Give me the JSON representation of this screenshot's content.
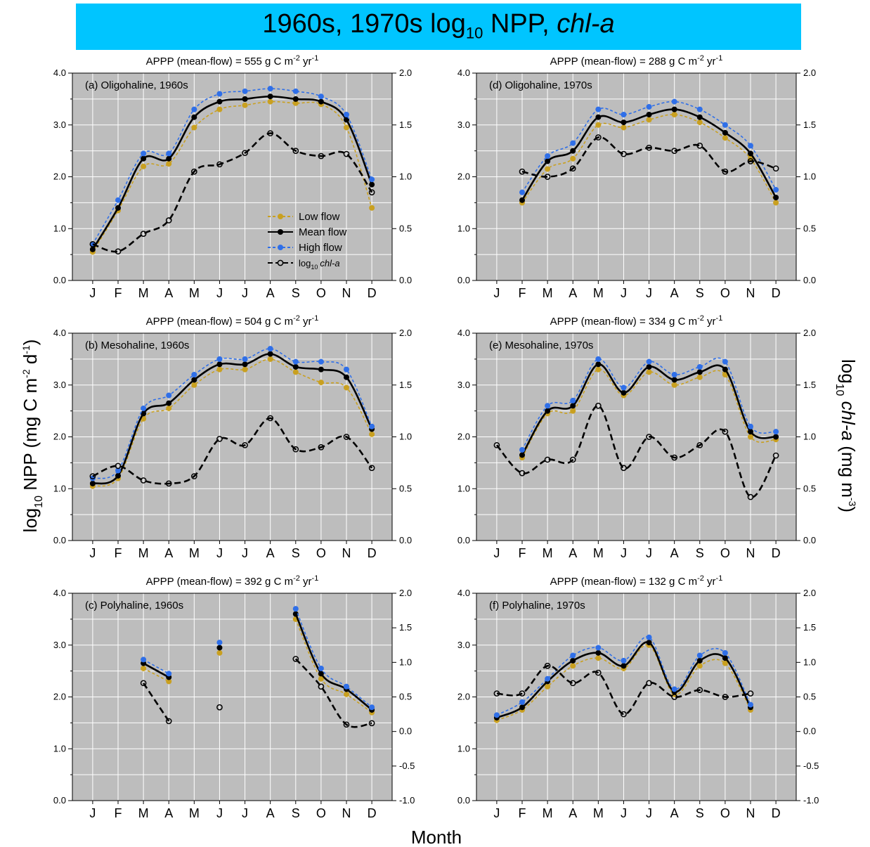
{
  "title": {
    "pre": "1960s, 1970s log",
    "sub": "10",
    "post": " NPP, ",
    "em": "chl-a"
  },
  "colors": {
    "banner": "#00c5ff",
    "panel_bg": "#bdbdbd",
    "grid": "#ffffff",
    "low": "#c9a020",
    "mean": "#000000",
    "high": "#2f6fe8",
    "chl": "#000000"
  },
  "axes": {
    "ylabel_left": {
      "pre": "log",
      "sub": "10",
      "mid": " NPP (mg C m",
      "sup1": "-2",
      "mid2": " d",
      "sup2": "-1",
      "end": ")"
    },
    "ylabel_right": {
      "pre": "log",
      "sub": "10",
      "mid": " chl-a",
      "mid2": " (mg m",
      "sup": "-3",
      "end": ")"
    },
    "xlabel": "Month"
  },
  "legend": {
    "low": "Low flow",
    "mean": "Mean flow",
    "high": "High flow",
    "chl_pre": "log",
    "chl_sub": "10",
    "chl_post": "chl-a"
  },
  "chart_data": [
    {
      "type": "line",
      "panel": "(a) Oligohaline, 1960s",
      "appp": {
        "pre": "APPP (mean-flow)  = 555 g C m",
        "sup1": "-2",
        "mid": " yr",
        "sup2": "-1"
      },
      "categories": [
        "J",
        "F",
        "M",
        "A",
        "M",
        "J",
        "J",
        "A",
        "S",
        "O",
        "N",
        "D"
      ],
      "y_left": {
        "range": [
          0,
          4
        ],
        "ticks": [
          "0.0",
          "1.0",
          "2.0",
          "3.0",
          "4.0"
        ]
      },
      "y_right": {
        "range": [
          0,
          2
        ],
        "ticks": [
          "0.0",
          "0.5",
          "1.0",
          "1.5",
          "2.0"
        ]
      },
      "series": [
        {
          "name": "Low flow",
          "values": [
            0.55,
            1.35,
            2.2,
            2.25,
            2.95,
            3.3,
            3.38,
            3.45,
            3.42,
            3.4,
            2.95,
            1.4
          ]
        },
        {
          "name": "Mean flow",
          "values": [
            0.6,
            1.4,
            2.35,
            2.35,
            3.15,
            3.45,
            3.5,
            3.55,
            3.5,
            3.45,
            3.1,
            1.85
          ]
        },
        {
          "name": "High flow",
          "values": [
            0.7,
            1.55,
            2.45,
            2.45,
            3.3,
            3.6,
            3.65,
            3.7,
            3.65,
            3.55,
            3.2,
            1.95
          ]
        },
        {
          "name": "log10 chl-a",
          "values": [
            0.35,
            0.28,
            0.45,
            0.58,
            1.05,
            1.12,
            1.23,
            1.42,
            1.25,
            1.2,
            1.22,
            0.85
          ]
        }
      ]
    },
    {
      "type": "line",
      "panel": "(d) Oligohaline, 1970s",
      "appp": {
        "pre": "APPP (mean-flow)  = 288 g C m",
        "sup1": "-2",
        "mid": " yr",
        "sup2": "-1"
      },
      "categories": [
        "J",
        "F",
        "M",
        "A",
        "M",
        "J",
        "J",
        "A",
        "S",
        "O",
        "N",
        "D"
      ],
      "y_left": {
        "range": [
          0,
          4
        ],
        "ticks": [
          "0.0",
          "1.0",
          "2.0",
          "3.0",
          "4.0"
        ]
      },
      "y_right": {
        "range": [
          0,
          2
        ],
        "ticks": [
          "0.0",
          "0.5",
          "1.0",
          "1.5",
          "2.0"
        ]
      },
      "series": [
        {
          "name": "Low flow",
          "values": [
            null,
            1.5,
            2.15,
            2.35,
            3.0,
            2.95,
            3.1,
            3.2,
            3.05,
            2.75,
            2.35,
            1.5
          ]
        },
        {
          "name": "Mean flow",
          "values": [
            null,
            1.55,
            2.3,
            2.5,
            3.15,
            3.05,
            3.2,
            3.3,
            3.15,
            2.85,
            2.45,
            1.6
          ]
        },
        {
          "name": "High flow",
          "values": [
            null,
            1.7,
            2.4,
            2.65,
            3.3,
            3.2,
            3.35,
            3.45,
            3.3,
            3.0,
            2.6,
            1.75
          ]
        },
        {
          "name": "log10 chl-a",
          "values": [
            null,
            1.05,
            1.0,
            1.08,
            1.38,
            1.22,
            1.28,
            1.25,
            1.3,
            1.05,
            1.15,
            1.08
          ]
        }
      ]
    },
    {
      "type": "line",
      "panel": "(b) Mesohaline, 1960s",
      "appp": {
        "pre": "APPP (mean-flow)  = 504 g C m",
        "sup1": "-2",
        "mid": " yr",
        "sup2": "-1"
      },
      "categories": [
        "J",
        "F",
        "M",
        "A",
        "M",
        "J",
        "J",
        "A",
        "S",
        "O",
        "N",
        "D"
      ],
      "y_left": {
        "range": [
          0,
          4
        ],
        "ticks": [
          "0.0",
          "1.0",
          "2.0",
          "3.0",
          "4.0"
        ]
      },
      "y_right": {
        "range": [
          0,
          2
        ],
        "ticks": [
          "0.0",
          "0.5",
          "1.0",
          "1.5",
          "2.0"
        ]
      },
      "series": [
        {
          "name": "Low flow",
          "values": [
            1.05,
            1.2,
            2.35,
            2.55,
            3.0,
            3.3,
            3.3,
            3.5,
            3.25,
            3.05,
            2.95,
            2.05
          ]
        },
        {
          "name": "Mean flow",
          "values": [
            1.1,
            1.25,
            2.45,
            2.65,
            3.1,
            3.4,
            3.4,
            3.6,
            3.35,
            3.3,
            3.15,
            2.15
          ]
        },
        {
          "name": "High flow",
          "values": [
            1.2,
            1.35,
            2.55,
            2.8,
            3.2,
            3.5,
            3.5,
            3.7,
            3.45,
            3.45,
            3.3,
            2.2
          ]
        },
        {
          "name": "log10 chl-a",
          "values": [
            0.62,
            0.72,
            0.58,
            0.55,
            0.62,
            0.98,
            0.92,
            1.18,
            0.88,
            0.9,
            1.0,
            0.7
          ]
        }
      ]
    },
    {
      "type": "line",
      "panel": "(e) Mesohaline, 1970s",
      "appp": {
        "pre": "APPP (mean-flow)  = 334 g C m",
        "sup1": "-2",
        "mid": " yr",
        "sup2": "-1"
      },
      "categories": [
        "J",
        "F",
        "M",
        "A",
        "M",
        "J",
        "J",
        "A",
        "S",
        "O",
        "N",
        "D"
      ],
      "y_left": {
        "range": [
          0,
          4
        ],
        "ticks": [
          "0.0",
          "1.0",
          "2.0",
          "3.0",
          "4.0"
        ]
      },
      "y_right": {
        "range": [
          0,
          2
        ],
        "ticks": [
          "0.0",
          "0.5",
          "1.0",
          "1.5",
          "2.0"
        ]
      },
      "series": [
        {
          "name": "Low flow",
          "values": [
            null,
            1.6,
            2.45,
            2.5,
            3.3,
            2.8,
            3.25,
            3.0,
            3.15,
            3.2,
            2.0,
            1.95
          ]
        },
        {
          "name": "Mean flow",
          "values": [
            null,
            1.65,
            2.5,
            2.6,
            3.4,
            2.85,
            3.35,
            3.1,
            3.25,
            3.3,
            2.1,
            2.0
          ]
        },
        {
          "name": "High flow",
          "values": [
            null,
            1.75,
            2.6,
            2.7,
            3.5,
            2.95,
            3.45,
            3.2,
            3.35,
            3.45,
            2.2,
            2.1
          ]
        },
        {
          "name": "log10 chl-a",
          "values": [
            0.92,
            0.65,
            0.78,
            0.78,
            1.3,
            0.7,
            1.0,
            0.8,
            0.92,
            1.05,
            0.42,
            0.82
          ]
        }
      ]
    },
    {
      "type": "line",
      "panel": "(c) Polyhaline, 1960s",
      "appp": {
        "pre": "APPP (mean-flow)  = 392 g C m",
        "sup1": "-2",
        "mid": " yr",
        "sup2": "-1"
      },
      "categories": [
        "J",
        "F",
        "M",
        "A",
        "M",
        "J",
        "J",
        "A",
        "S",
        "O",
        "N",
        "D"
      ],
      "y_left": {
        "range": [
          0,
          4
        ],
        "ticks": [
          "0.0",
          "1.0",
          "2.0",
          "3.0",
          "4.0"
        ]
      },
      "y_right": {
        "range": [
          -1,
          2
        ],
        "ticks": [
          "-1.0",
          "-0.5",
          "0.0",
          "0.5",
          "1.0",
          "1.5",
          "2.0"
        ]
      },
      "series": [
        {
          "name": "Low flow",
          "values": [
            null,
            null,
            2.55,
            2.3,
            null,
            2.85,
            null,
            null,
            3.5,
            2.35,
            2.05,
            1.7
          ]
        },
        {
          "name": "Mean flow",
          "values": [
            null,
            null,
            2.65,
            2.38,
            null,
            2.95,
            null,
            null,
            3.6,
            2.45,
            2.15,
            1.75
          ]
        },
        {
          "name": "High flow",
          "values": [
            null,
            null,
            2.72,
            2.45,
            null,
            3.05,
            null,
            null,
            3.7,
            2.55,
            2.2,
            1.8
          ]
        },
        {
          "name": "log10 chl-a",
          "values": [
            null,
            null,
            0.7,
            0.15,
            null,
            0.35,
            null,
            null,
            1.05,
            0.65,
            0.1,
            0.12
          ]
        }
      ]
    },
    {
      "type": "line",
      "panel": "(f) Polyhaline, 1970s",
      "appp": {
        "pre": "APPP (mean-flow)  = 132 g C m",
        "sup1": "-2",
        "mid": " yr",
        "sup2": "-1"
      },
      "categories": [
        "J",
        "F",
        "M",
        "A",
        "M",
        "J",
        "J",
        "A",
        "S",
        "O",
        "N",
        "D"
      ],
      "y_left": {
        "range": [
          0,
          4
        ],
        "ticks": [
          "0.0",
          "1.0",
          "2.0",
          "3.0",
          "4.0"
        ]
      },
      "y_right": {
        "range": [
          -1,
          2
        ],
        "ticks": [
          "-1.0",
          "-0.5",
          "0.0",
          "0.5",
          "1.0",
          "1.5",
          "2.0"
        ]
      },
      "series": [
        {
          "name": "Low flow",
          "values": [
            1.55,
            1.75,
            2.2,
            2.6,
            2.75,
            2.55,
            3.0,
            2.05,
            2.6,
            2.65,
            1.75,
            null
          ]
        },
        {
          "name": "Mean flow",
          "values": [
            1.6,
            1.8,
            2.3,
            2.7,
            2.85,
            2.6,
            3.05,
            2.1,
            2.7,
            2.75,
            1.8,
            null
          ]
        },
        {
          "name": "High flow",
          "values": [
            1.65,
            1.9,
            2.35,
            2.8,
            2.95,
            2.7,
            3.15,
            2.15,
            2.8,
            2.85,
            1.85,
            null
          ]
        },
        {
          "name": "log10 chl-a",
          "values": [
            0.55,
            0.55,
            0.95,
            0.7,
            0.85,
            0.25,
            0.7,
            0.5,
            0.6,
            0.5,
            0.55,
            null
          ]
        }
      ]
    }
  ]
}
